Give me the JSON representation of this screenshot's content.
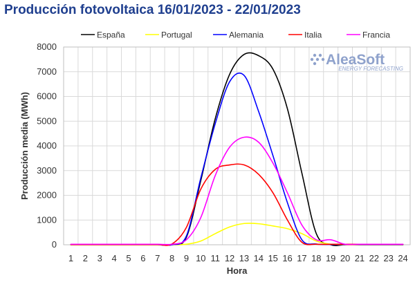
{
  "chart_data": {
    "type": "line",
    "title": "Producción fotovoltaica 16/01/2023 - 22/01/2023",
    "xlabel": "Hora",
    "ylabel": "Producción media (MWh)",
    "x": [
      1,
      2,
      3,
      4,
      5,
      6,
      7,
      8,
      9,
      10,
      11,
      12,
      13,
      14,
      15,
      16,
      17,
      18,
      19,
      20,
      21,
      22,
      23,
      24
    ],
    "xlim": [
      0.5,
      24.5
    ],
    "ylim": [
      0,
      8000
    ],
    "yticks": [
      0,
      1000,
      2000,
      3000,
      4000,
      5000,
      6000,
      7000,
      8000
    ],
    "grid": true,
    "legend_position": "top",
    "series": [
      {
        "name": "España",
        "color": "#000000",
        "values": [
          0,
          0,
          0,
          0,
          0,
          0,
          0,
          0,
          300,
          2600,
          5100,
          6900,
          7700,
          7650,
          7100,
          5500,
          2900,
          450,
          0,
          0,
          0,
          0,
          0,
          0
        ]
      },
      {
        "name": "Portugal",
        "color": "#ffff00",
        "values": [
          0,
          0,
          0,
          0,
          0,
          0,
          0,
          0,
          20,
          150,
          450,
          720,
          860,
          850,
          760,
          650,
          450,
          150,
          20,
          0,
          0,
          0,
          0,
          0
        ]
      },
      {
        "name": "Alemania",
        "color": "#0000ff",
        "values": [
          10,
          10,
          10,
          10,
          10,
          10,
          10,
          0,
          350,
          2700,
          4900,
          6600,
          6850,
          5400,
          3600,
          1700,
          200,
          30,
          10,
          10,
          10,
          10,
          10,
          10
        ]
      },
      {
        "name": "Italia",
        "color": "#ff0000",
        "values": [
          10,
          10,
          10,
          10,
          10,
          10,
          10,
          30,
          700,
          2250,
          3050,
          3230,
          3230,
          2850,
          2100,
          1000,
          100,
          20,
          20,
          20,
          20,
          20,
          20,
          20
        ]
      },
      {
        "name": "Francia",
        "color": "#ff00ff",
        "values": [
          20,
          20,
          20,
          20,
          20,
          20,
          20,
          20,
          200,
          1100,
          2800,
          3950,
          4350,
          4150,
          3300,
          2100,
          800,
          200,
          200,
          20,
          20,
          20,
          20,
          20
        ]
      }
    ]
  },
  "logo": {
    "text": "AleaSoft",
    "subtitle": "ENERGY FORECASTING",
    "color": "#8fa2cc"
  }
}
